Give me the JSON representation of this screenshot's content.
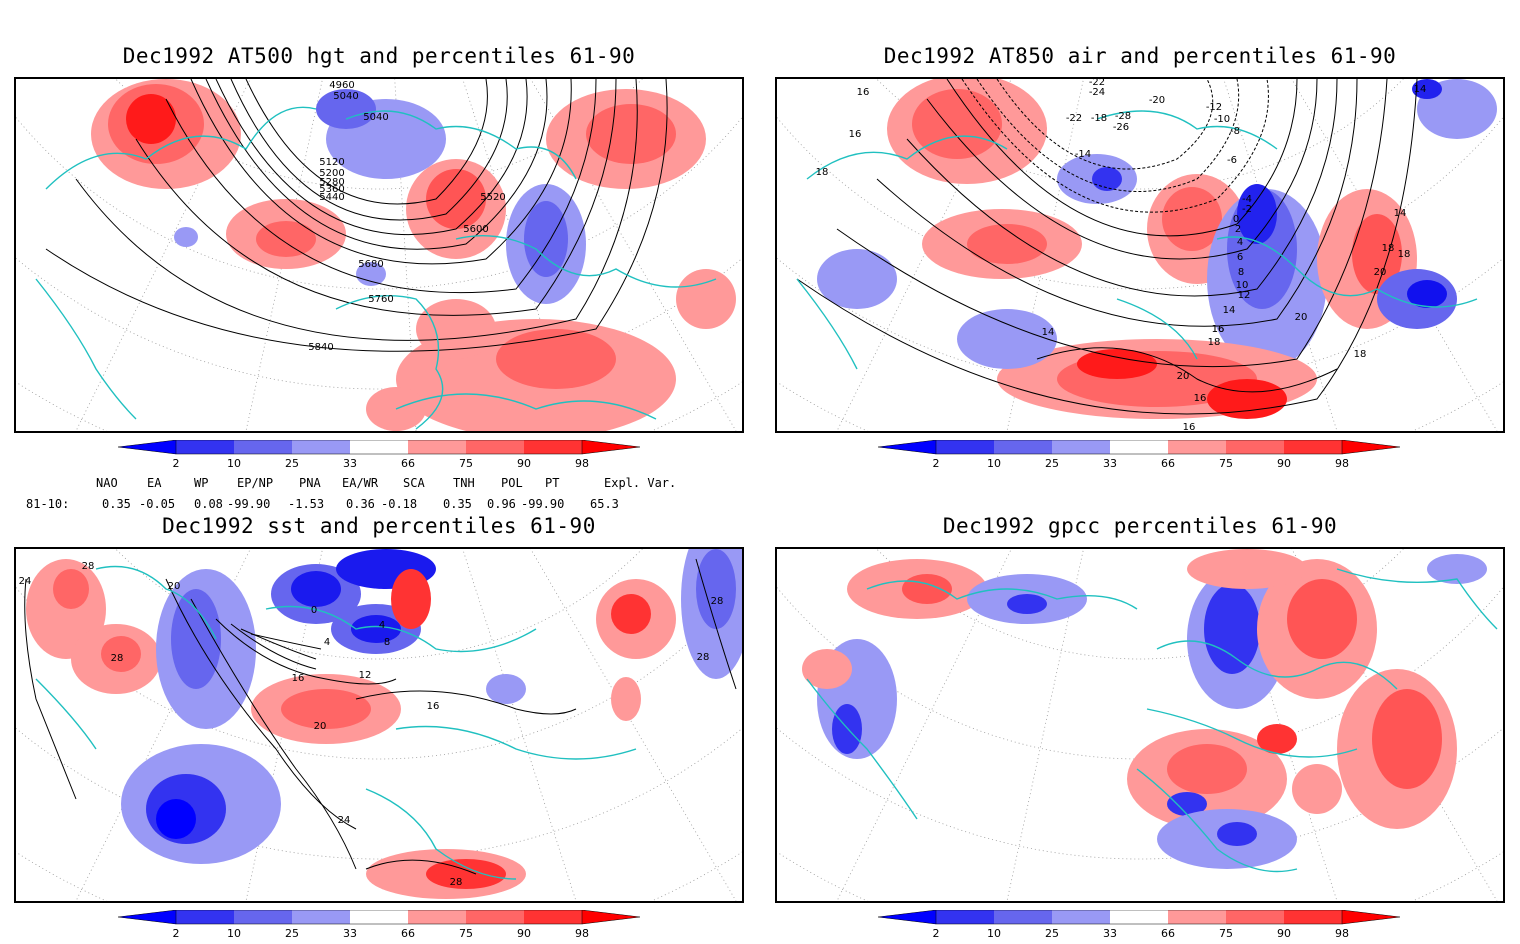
{
  "panels": [
    {
      "title": "Dec1992 AT500 hgt and percentiles 61-90",
      "contour_labels": [
        "4960",
        "5040",
        "5040",
        "5120",
        "5200",
        "5280",
        "5360",
        "5440",
        "5520",
        "5600",
        "5680",
        "5760",
        "5840"
      ]
    },
    {
      "title": "Dec1992 AT850 air and percentiles 61-90",
      "contour_labels": [
        "16",
        "16",
        "18",
        "14",
        "-22",
        "-24",
        "-22",
        "-20",
        "-18",
        "-26",
        "-28",
        "-14",
        "-12",
        "-10",
        "-8",
        "-6",
        "-4",
        "-2",
        "0",
        "2",
        "4",
        "6",
        "8",
        "10",
        "12",
        "14",
        "16",
        "18",
        "20",
        "16",
        "18",
        "20",
        "18",
        "14",
        "20",
        "14",
        "16",
        "18",
        "16"
      ]
    },
    {
      "title": "Dec1992 sst and percentiles 61-90",
      "contour_labels": [
        "28",
        "24",
        "20",
        "28",
        "0",
        "4",
        "4",
        "8",
        "12",
        "16",
        "20",
        "16",
        "28",
        "28",
        "24",
        "28"
      ]
    },
    {
      "title": "Dec1992 gpcc percentiles 61-90",
      "contour_labels": []
    }
  ],
  "colorbar": {
    "ticks": [
      "2",
      "10",
      "25",
      "33",
      "66",
      "75",
      "90",
      "98"
    ],
    "colors": {
      "b1": "#0000ff",
      "b2": "#3333f0",
      "b3": "#6666ee",
      "b4": "#9999f5",
      "r1": "#ff9999",
      "r2": "#ff6666",
      "r3": "#ff3333",
      "r4": "#ff0000"
    }
  },
  "indices": {
    "headers": [
      "NAO",
      "EA",
      "WP",
      "EP/NP",
      "PNA",
      "EA/WR",
      "SCA",
      "TNH",
      "POL",
      "PT",
      "Expl. Var."
    ],
    "row_label": "81-10:",
    "values": [
      "0.35",
      "-0.05",
      "0.08",
      "-99.90",
      "-1.53",
      "0.36",
      "-0.18",
      "0.35",
      "0.96",
      "-99.90",
      "65.3"
    ]
  }
}
